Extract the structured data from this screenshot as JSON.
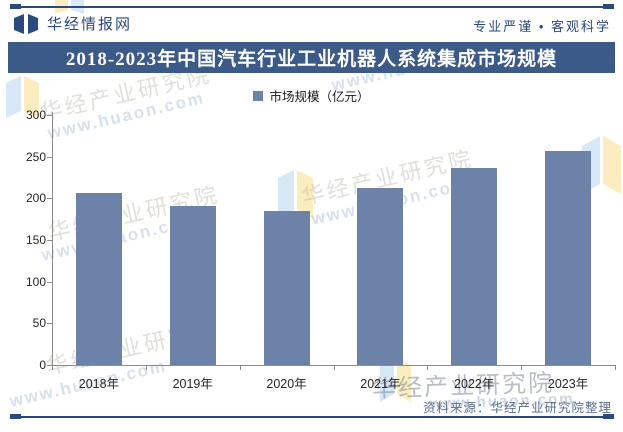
{
  "header": {
    "brand": "华经情报网",
    "tagline": "专业严谨 • 客观科学"
  },
  "title_bar": {
    "text": "2018-2023年中国汽车行业工业机器人系统集成市场规模"
  },
  "legend": {
    "label": "市场规模（亿元）"
  },
  "chart_data": {
    "type": "bar",
    "title": "2018-2023年中国汽车行业工业机器人系统集成市场规模",
    "categories": [
      "2018年",
      "2019年",
      "2020年",
      "2021年",
      "2022年",
      "2023年"
    ],
    "series": [
      {
        "name": "市场规模（亿元）",
        "values": [
          206,
          191,
          185,
          212,
          236,
          257
        ]
      }
    ],
    "xlabel": "",
    "ylabel": "",
    "ylim": [
      0,
      300
    ],
    "yticks": [
      0,
      50,
      100,
      150,
      200,
      250,
      300
    ],
    "grid": false,
    "legend_position": "top",
    "bar_color": "#6d82a8",
    "axis_color": "#8c8c8c",
    "accent_color": "#2b4a7d",
    "title_bg_color": "#3b5a88"
  },
  "footer": {
    "source": "资料来源：华经产业研究院整理"
  },
  "watermarks": {
    "name": "华经产业研究院",
    "url": "www.huaon.com"
  }
}
